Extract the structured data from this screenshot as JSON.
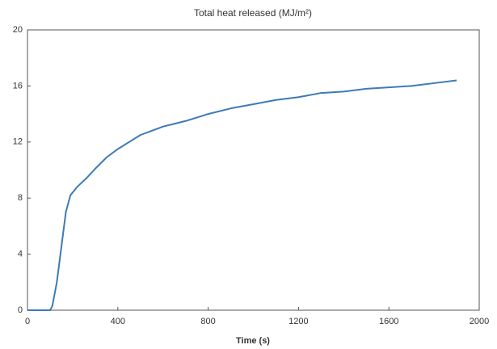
{
  "chart_data": {
    "type": "line",
    "title": "Total heat released (MJ/m²)",
    "x_label": "Time (s)",
    "x": [
      0,
      100,
      110,
      130,
      150,
      170,
      190,
      220,
      260,
      300,
      350,
      400,
      450,
      500,
      550,
      600,
      650,
      700,
      800,
      900,
      1000,
      1100,
      1200,
      1300,
      1400,
      1500,
      1600,
      1700,
      1800,
      1900
    ],
    "series": [
      {
        "name": "Total heat released",
        "color": "#3d7ab8",
        "values": [
          0,
          0,
          0.3,
          2,
          4.5,
          7,
          8.2,
          8.8,
          9.4,
          10.1,
          10.9,
          11.5,
          12,
          12.5,
          12.8,
          13.1,
          13.3,
          13.5,
          14,
          14.4,
          14.7,
          15,
          15.2,
          15.5,
          15.6,
          15.8,
          15.9,
          16,
          16.2,
          16.4
        ]
      }
    ],
    "xlim": [
      0,
      2000
    ],
    "xticks": [
      0,
      400,
      800,
      1200,
      1600,
      2000
    ],
    "ylim": [
      0,
      20
    ],
    "yticks": [
      0,
      4,
      8,
      12,
      16,
      20
    ],
    "grid": false
  }
}
